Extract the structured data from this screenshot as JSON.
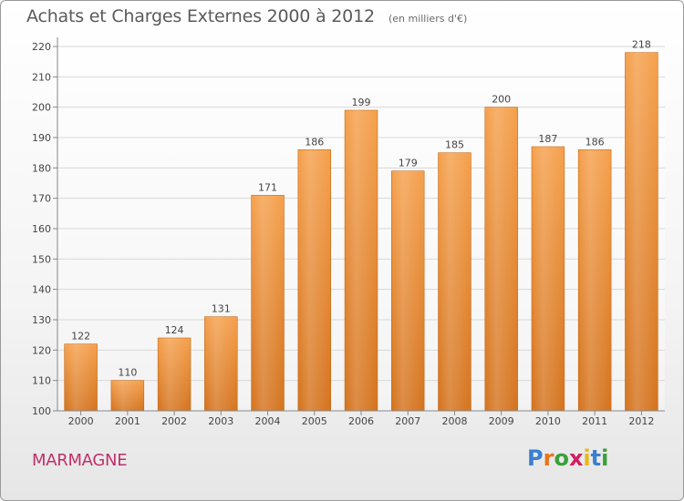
{
  "chart_data": {
    "type": "bar",
    "title": "Achats et Charges Externes 2000 à 2012",
    "subtitle": "(en milliers d'€)",
    "categories": [
      "2000",
      "2001",
      "2002",
      "2003",
      "2004",
      "2005",
      "2006",
      "2007",
      "2008",
      "2009",
      "2010",
      "2011",
      "2012"
    ],
    "values": [
      122,
      110,
      124,
      131,
      171,
      186,
      199,
      179,
      185,
      200,
      187,
      186,
      218
    ],
    "ylim": [
      100,
      220
    ],
    "yticks": [
      100,
      110,
      120,
      130,
      140,
      150,
      160,
      170,
      180,
      190,
      200,
      210,
      220
    ],
    "grid": true,
    "bar_color_top": "#f5a04c",
    "bar_color_bottom": "#d4731e"
  },
  "commune": "MARMAGNE",
  "logo": {
    "letters": [
      "P",
      "r",
      "o",
      "x",
      "i",
      "t",
      "i"
    ],
    "colors": [
      "#3a7fd0",
      "#e8731a",
      "#3aa03a",
      "#d02060",
      "#e8b81a",
      "#3a7fd0",
      "#3aa03a"
    ]
  }
}
